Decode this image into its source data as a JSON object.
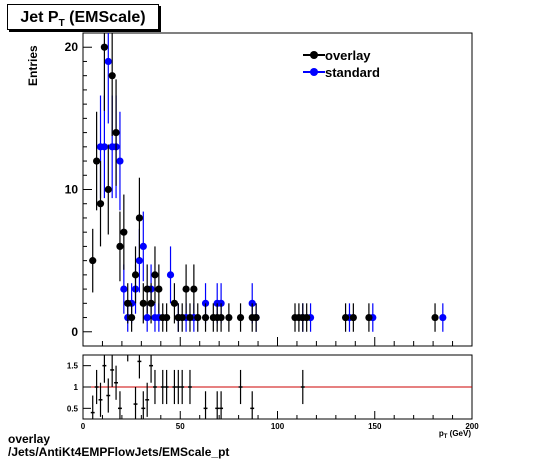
{
  "title": {
    "main": "Jet P",
    "sub": "T",
    "suffix": " (EMScale)"
  },
  "footer": {
    "line1": "overlay",
    "line2": "/Jets/AntiKt4EMPFlowJets/EMScale_pt"
  },
  "chart_data": [
    {
      "type": "scatter",
      "ylabel": "Entries",
      "xlim": [
        0,
        200
      ],
      "ylim": [
        -1,
        21
      ],
      "yticks": [
        0,
        10,
        20
      ],
      "legend": {
        "position": "top-right",
        "entries": [
          "overlay",
          "standard"
        ]
      },
      "colors": {
        "overlay": "#000000",
        "standard": "#0000ff"
      },
      "series": [
        {
          "name": "overlay",
          "points": [
            [
              5,
              5
            ],
            [
              7,
              12
            ],
            [
              9,
              9
            ],
            [
              11,
              20
            ],
            [
              13,
              10
            ],
            [
              15,
              18
            ],
            [
              17,
              14
            ],
            [
              19,
              6
            ],
            [
              21,
              7
            ],
            [
              23,
              2
            ],
            [
              25,
              1
            ],
            [
              27,
              4
            ],
            [
              29,
              8
            ],
            [
              31,
              2
            ],
            [
              33,
              3
            ],
            [
              35,
              2
            ],
            [
              37,
              4
            ],
            [
              39,
              3
            ],
            [
              41,
              1
            ],
            [
              43,
              1
            ],
            [
              47,
              2
            ],
            [
              49,
              1
            ],
            [
              51,
              1
            ],
            [
              53,
              3
            ],
            [
              55,
              1
            ],
            [
              57,
              3
            ],
            [
              59,
              1
            ],
            [
              63,
              1
            ],
            [
              67,
              1
            ],
            [
              69,
              1
            ],
            [
              71,
              1
            ],
            [
              75,
              1
            ],
            [
              81,
              1
            ],
            [
              87,
              1
            ],
            [
              89,
              1
            ],
            [
              109,
              1
            ],
            [
              111,
              1
            ],
            [
              113,
              1
            ],
            [
              115,
              1
            ],
            [
              135,
              1
            ],
            [
              139,
              1
            ],
            [
              147,
              1
            ],
            [
              181,
              1
            ]
          ]
        },
        {
          "name": "standard",
          "points": [
            [
              9,
              13
            ],
            [
              11,
              13
            ],
            [
              13,
              19
            ],
            [
              15,
              13
            ],
            [
              17,
              13
            ],
            [
              19,
              12
            ],
            [
              21,
              3
            ],
            [
              23,
              1
            ],
            [
              25,
              2
            ],
            [
              27,
              3
            ],
            [
              29,
              5
            ],
            [
              31,
              6
            ],
            [
              33,
              1
            ],
            [
              35,
              3
            ],
            [
              37,
              1
            ],
            [
              39,
              1
            ],
            [
              45,
              4
            ],
            [
              49,
              1
            ],
            [
              53,
              1
            ],
            [
              57,
              1
            ],
            [
              63,
              2
            ],
            [
              69,
              2
            ],
            [
              71,
              2
            ],
            [
              87,
              2
            ],
            [
              89,
              1
            ],
            [
              113,
              1
            ],
            [
              117,
              1
            ],
            [
              137,
              1
            ],
            [
              149,
              1
            ],
            [
              185,
              1
            ]
          ]
        }
      ]
    },
    {
      "type": "scatter",
      "xlim": [
        0,
        200
      ],
      "ylim": [
        0.25,
        1.75
      ],
      "xticks": [
        0,
        50,
        100,
        150,
        200
      ],
      "yticks": [
        0.5,
        1,
        1.5
      ],
      "reference_line": 1,
      "xlabel": "p_T (GeV)",
      "points": [
        [
          5,
          0.4
        ],
        [
          7,
          1.0
        ],
        [
          9,
          0.7
        ],
        [
          11,
          1.5
        ],
        [
          13,
          0.8
        ],
        [
          15,
          1.4
        ],
        [
          17,
          1.1
        ],
        [
          19,
          0.5
        ],
        [
          23,
          2.0
        ],
        [
          27,
          0.6
        ],
        [
          29,
          1.6
        ],
        [
          31,
          0.5
        ],
        [
          33,
          0.7
        ],
        [
          35,
          1.5
        ],
        [
          37,
          1.0
        ],
        [
          41,
          1.0
        ],
        [
          43,
          1.0
        ],
        [
          47,
          1.0
        ],
        [
          49,
          1.0
        ],
        [
          51,
          1.0
        ],
        [
          55,
          1.0
        ],
        [
          63,
          0.5
        ],
        [
          69,
          0.5
        ],
        [
          71,
          0.5
        ],
        [
          81,
          1.0
        ],
        [
          87,
          0.5
        ],
        [
          113,
          1.0
        ]
      ]
    }
  ]
}
